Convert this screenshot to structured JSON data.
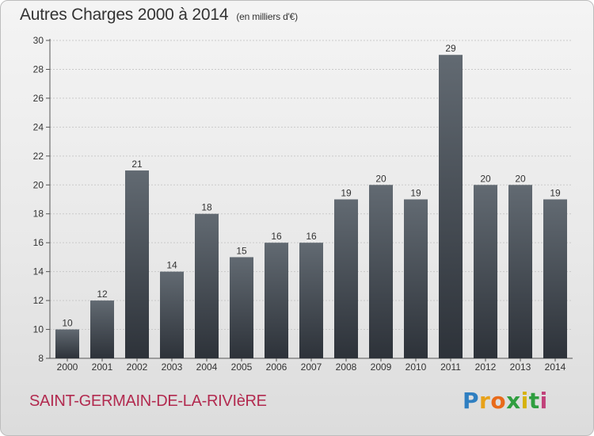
{
  "title": "Autres Charges 2000 à 2014",
  "unit_note": "(en milliers d'€)",
  "commune": "SAINT-GERMAIN-DE-LA-RIVIèRE",
  "logo": {
    "text": "Proxiti",
    "letters": [
      {
        "ch": "P",
        "color": "#2f7fc1"
      },
      {
        "ch": "r",
        "color": "#e8a21a"
      },
      {
        "ch": "o",
        "color": "#e86a1a"
      },
      {
        "ch": "x",
        "color": "#2f9e3f"
      },
      {
        "ch": "i",
        "color": "#d6b20d"
      },
      {
        "ch": "t",
        "color": "#2f9e3f"
      },
      {
        "ch": "i",
        "color": "#c1417a"
      }
    ]
  },
  "colors": {
    "bar_top": "#626a72",
    "bar_bottom": "#2d3239",
    "gridline": "#c9c9c9",
    "axis": "#555555",
    "commune_text": "#b22a4f"
  },
  "chart_data": {
    "type": "bar",
    "title": "Autres Charges 2000 à 2014",
    "subtitle": "(en milliers d'€)",
    "xlabel": "",
    "ylabel": "",
    "categories": [
      "2000",
      "2001",
      "2002",
      "2003",
      "2004",
      "2005",
      "2006",
      "2007",
      "2008",
      "2009",
      "2010",
      "2011",
      "2012",
      "2013",
      "2014"
    ],
    "values": [
      10,
      12,
      21,
      14,
      18,
      15,
      16,
      16,
      19,
      20,
      19,
      29,
      20,
      20,
      19
    ],
    "ylim": [
      8,
      30
    ],
    "yticks": [
      8,
      10,
      12,
      14,
      16,
      18,
      20,
      22,
      24,
      26,
      28,
      30
    ],
    "grid": true,
    "legend": "none"
  }
}
